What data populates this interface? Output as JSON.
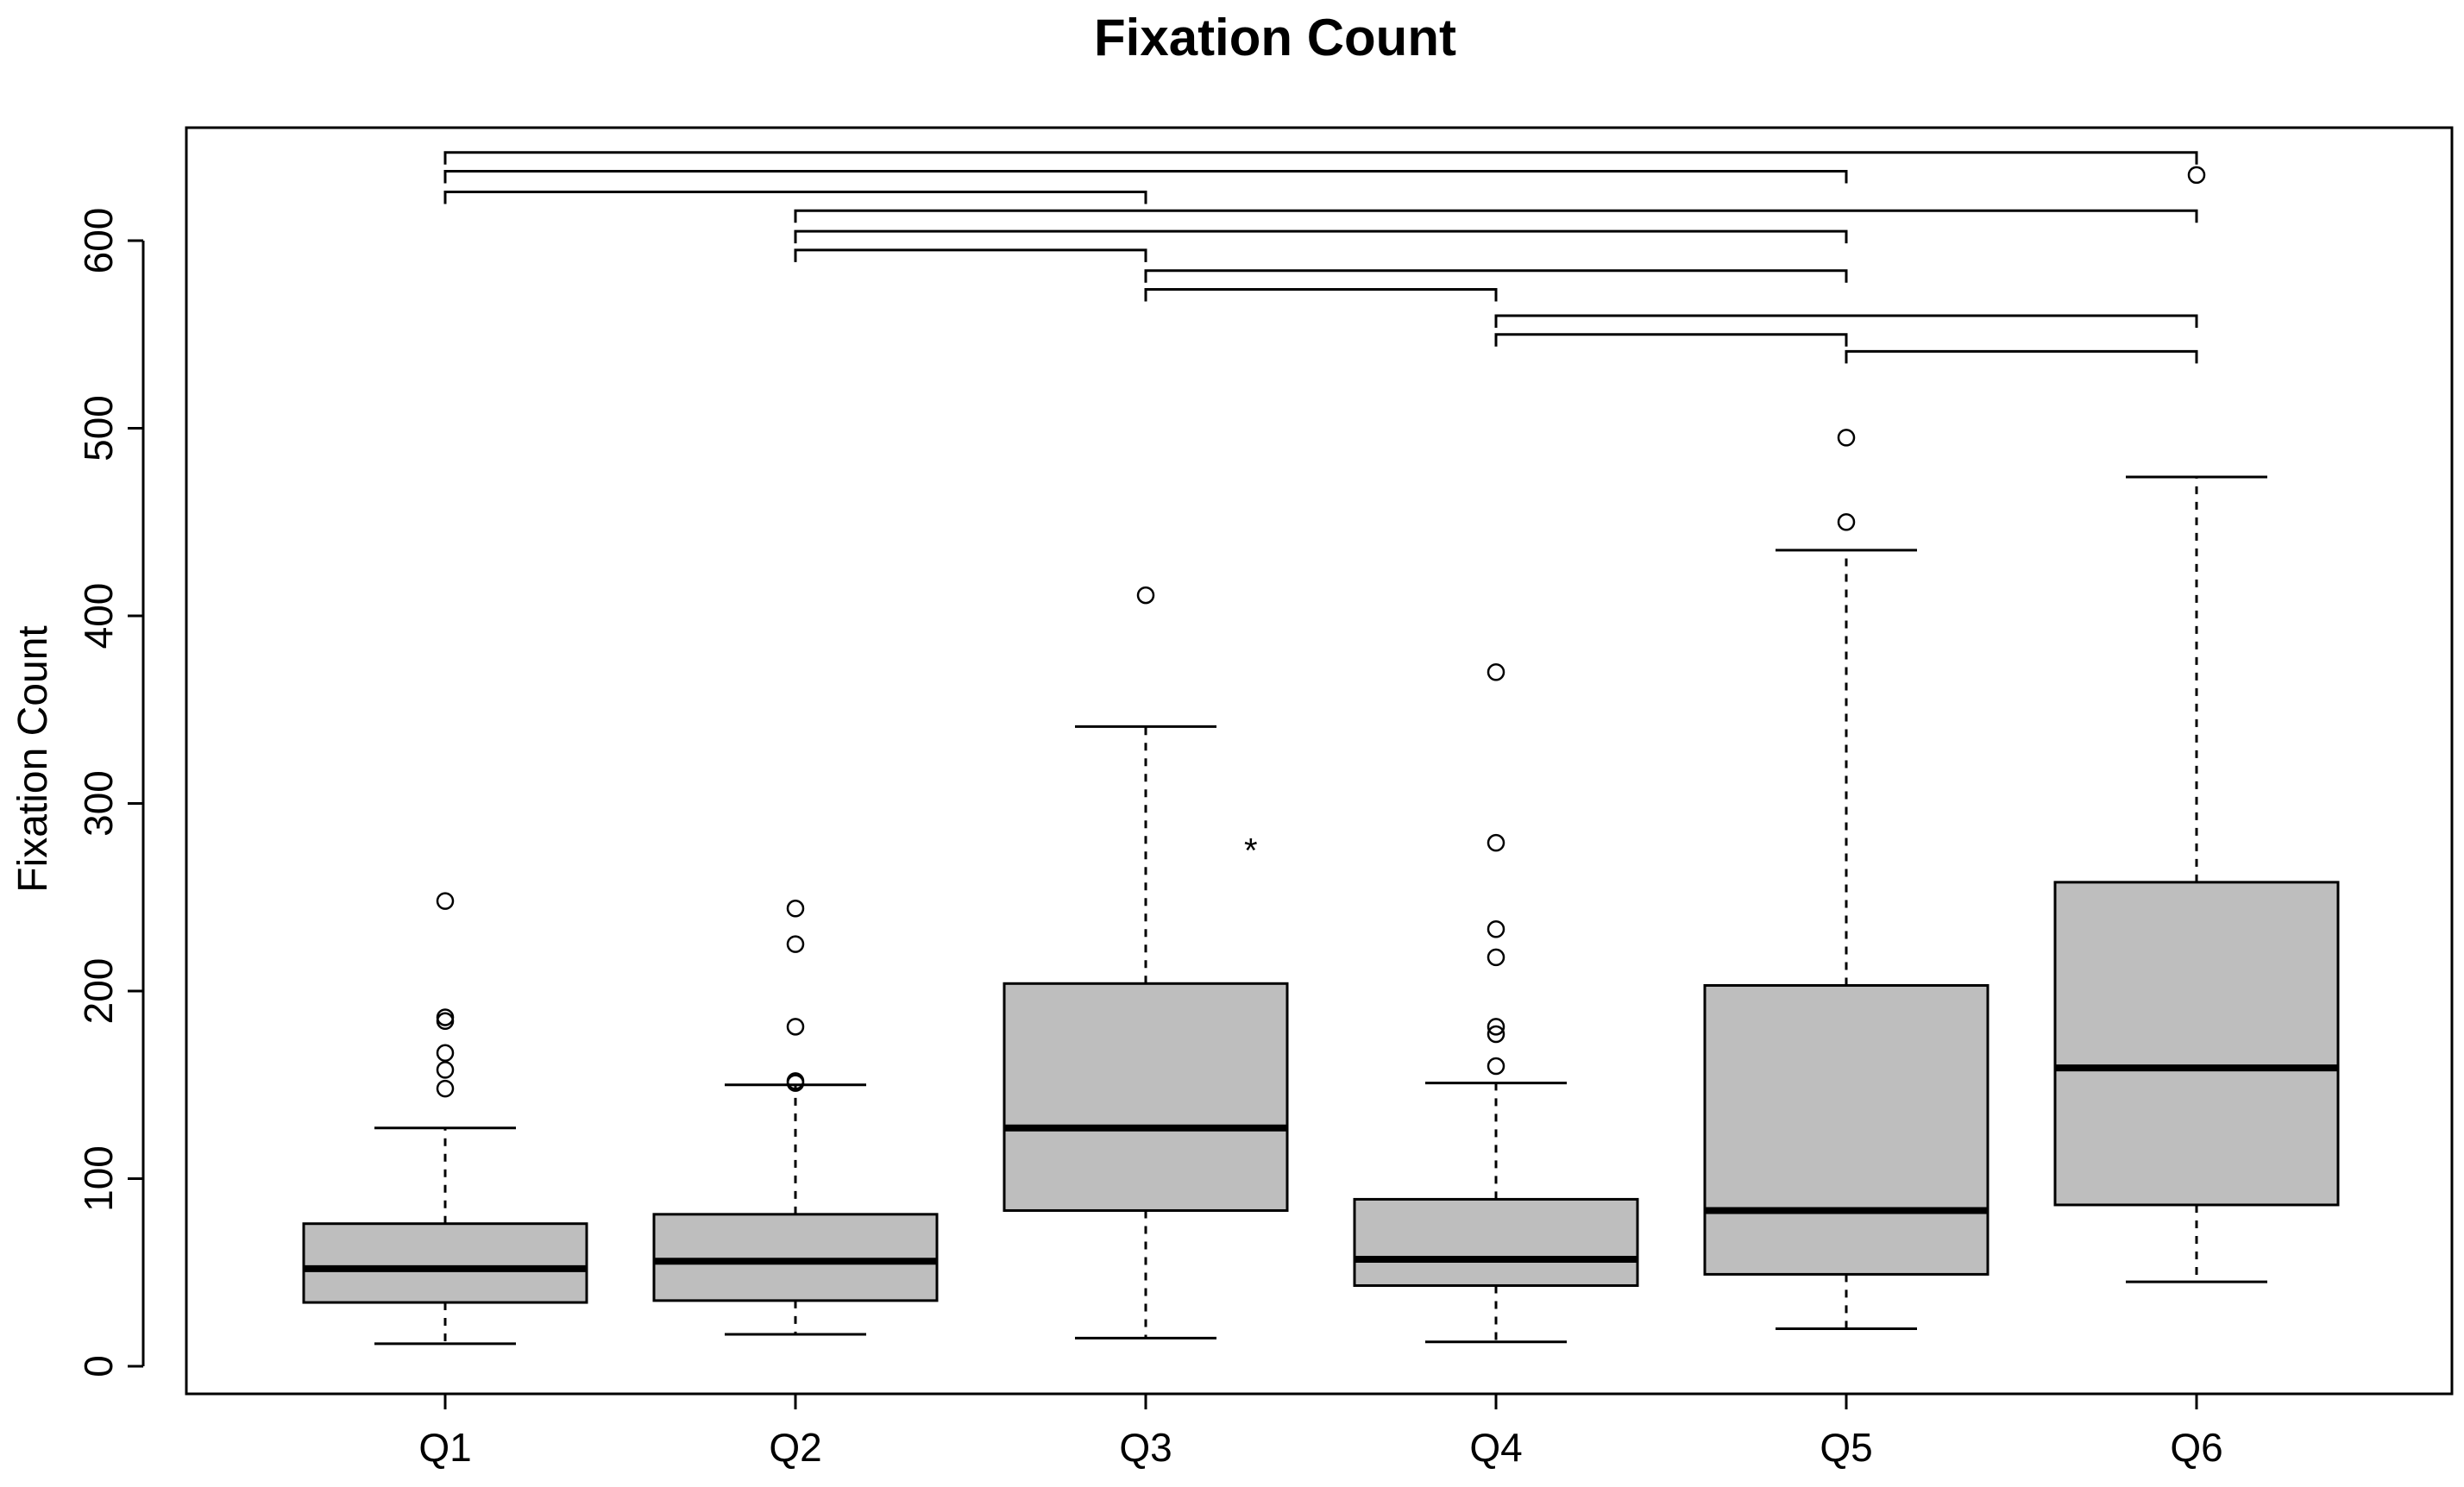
{
  "chart_data": {
    "type": "box",
    "title": "Fixation Count",
    "xlabel": "",
    "ylabel": "Fixation Count",
    "ylim": [
      0,
      640
    ],
    "yticks": [
      0,
      100,
      200,
      300,
      400,
      500,
      600
    ],
    "grid": false,
    "categories": [
      "Q1",
      "Q2",
      "Q3",
      "Q4",
      "Q5",
      "Q6"
    ],
    "boxes": [
      {
        "name": "Q1",
        "whisker_low": 12,
        "q1": 34,
        "median": 52,
        "q3": 76,
        "whisker_high": 127,
        "outliers": [
          248,
          186,
          184,
          167,
          158,
          148
        ]
      },
      {
        "name": "Q2",
        "whisker_low": 17,
        "q1": 35,
        "median": 56,
        "q3": 81,
        "whisker_high": 150,
        "outliers": [
          244,
          225,
          181,
          152,
          151
        ]
      },
      {
        "name": "Q3",
        "whisker_low": 15,
        "q1": 83,
        "median": 127,
        "q3": 204,
        "whisker_high": 341,
        "outliers": [
          411
        ]
      },
      {
        "name": "Q4",
        "whisker_low": 13,
        "q1": 43,
        "median": 57,
        "q3": 89,
        "whisker_high": 151,
        "outliers": [
          370,
          279,
          233,
          218,
          181,
          177,
          160
        ]
      },
      {
        "name": "Q5",
        "whisker_low": 20,
        "q1": 49,
        "median": 83,
        "q3": 203,
        "whisker_high": 435,
        "outliers": [
          495,
          450
        ]
      },
      {
        "name": "Q6",
        "whisker_low": 45,
        "q1": 86,
        "median": 159,
        "q3": 258,
        "whisker_high": 474,
        "outliers": [
          635
        ]
      }
    ],
    "brackets": [
      {
        "from": 1,
        "to": 6,
        "y": 647
      },
      {
        "from": 1,
        "to": 5,
        "y": 637
      },
      {
        "from": 1,
        "to": 3,
        "y": 626
      },
      {
        "from": 2,
        "to": 6,
        "y": 616
      },
      {
        "from": 2,
        "to": 5,
        "y": 605
      },
      {
        "from": 2,
        "to": 3,
        "y": 595
      },
      {
        "from": 3,
        "to": 5,
        "y": 584
      },
      {
        "from": 3,
        "to": 4,
        "y": 574
      },
      {
        "from": 4,
        "to": 6,
        "y": 560
      },
      {
        "from": 4,
        "to": 5,
        "y": 550
      },
      {
        "from": 5,
        "to": 6,
        "y": 541
      }
    ],
    "annotations": [
      {
        "text": "*",
        "x": 3.3,
        "y": 278
      }
    ],
    "colors": {
      "box_fill": "#bebebe",
      "line": "#000000",
      "background": "#ffffff"
    }
  }
}
